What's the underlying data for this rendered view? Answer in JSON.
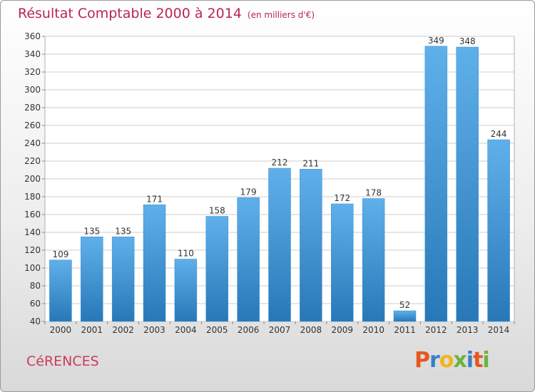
{
  "header": {
    "title": "Résultat Comptable 2000 à 2014",
    "unit": "(en milliers d'€)"
  },
  "commune": "CéRENCES",
  "logo": {
    "letters": [
      "P",
      "r",
      "o",
      "x",
      "i",
      "t",
      "i"
    ],
    "colors": [
      "#e8561e",
      "#3a7fc6",
      "#f2b51b",
      "#6cb33e",
      "#3a7fc6",
      "#e8561e",
      "#6cb33e"
    ]
  },
  "colors": {
    "bar_top": "#5fb0ea",
    "bar_bottom": "#2878b8",
    "title": "#b8264e",
    "grid": "#cccccc"
  },
  "chart_data": {
    "type": "bar",
    "title": "Résultat Comptable 2000 à 2014",
    "subtitle": "(en milliers d'€)",
    "xlabel": "",
    "ylabel": "",
    "categories": [
      "2000",
      "2001",
      "2002",
      "2003",
      "2004",
      "2005",
      "2006",
      "2007",
      "2008",
      "2009",
      "2010",
      "2011",
      "2012",
      "2013",
      "2014"
    ],
    "values": [
      109,
      135,
      135,
      171,
      110,
      158,
      179,
      212,
      211,
      172,
      178,
      52,
      349,
      348,
      244
    ],
    "ylim": [
      40,
      360
    ],
    "yticks": [
      40,
      60,
      80,
      100,
      120,
      140,
      160,
      180,
      200,
      220,
      240,
      260,
      280,
      300,
      320,
      340,
      360
    ],
    "grid": true,
    "legend": "none"
  }
}
